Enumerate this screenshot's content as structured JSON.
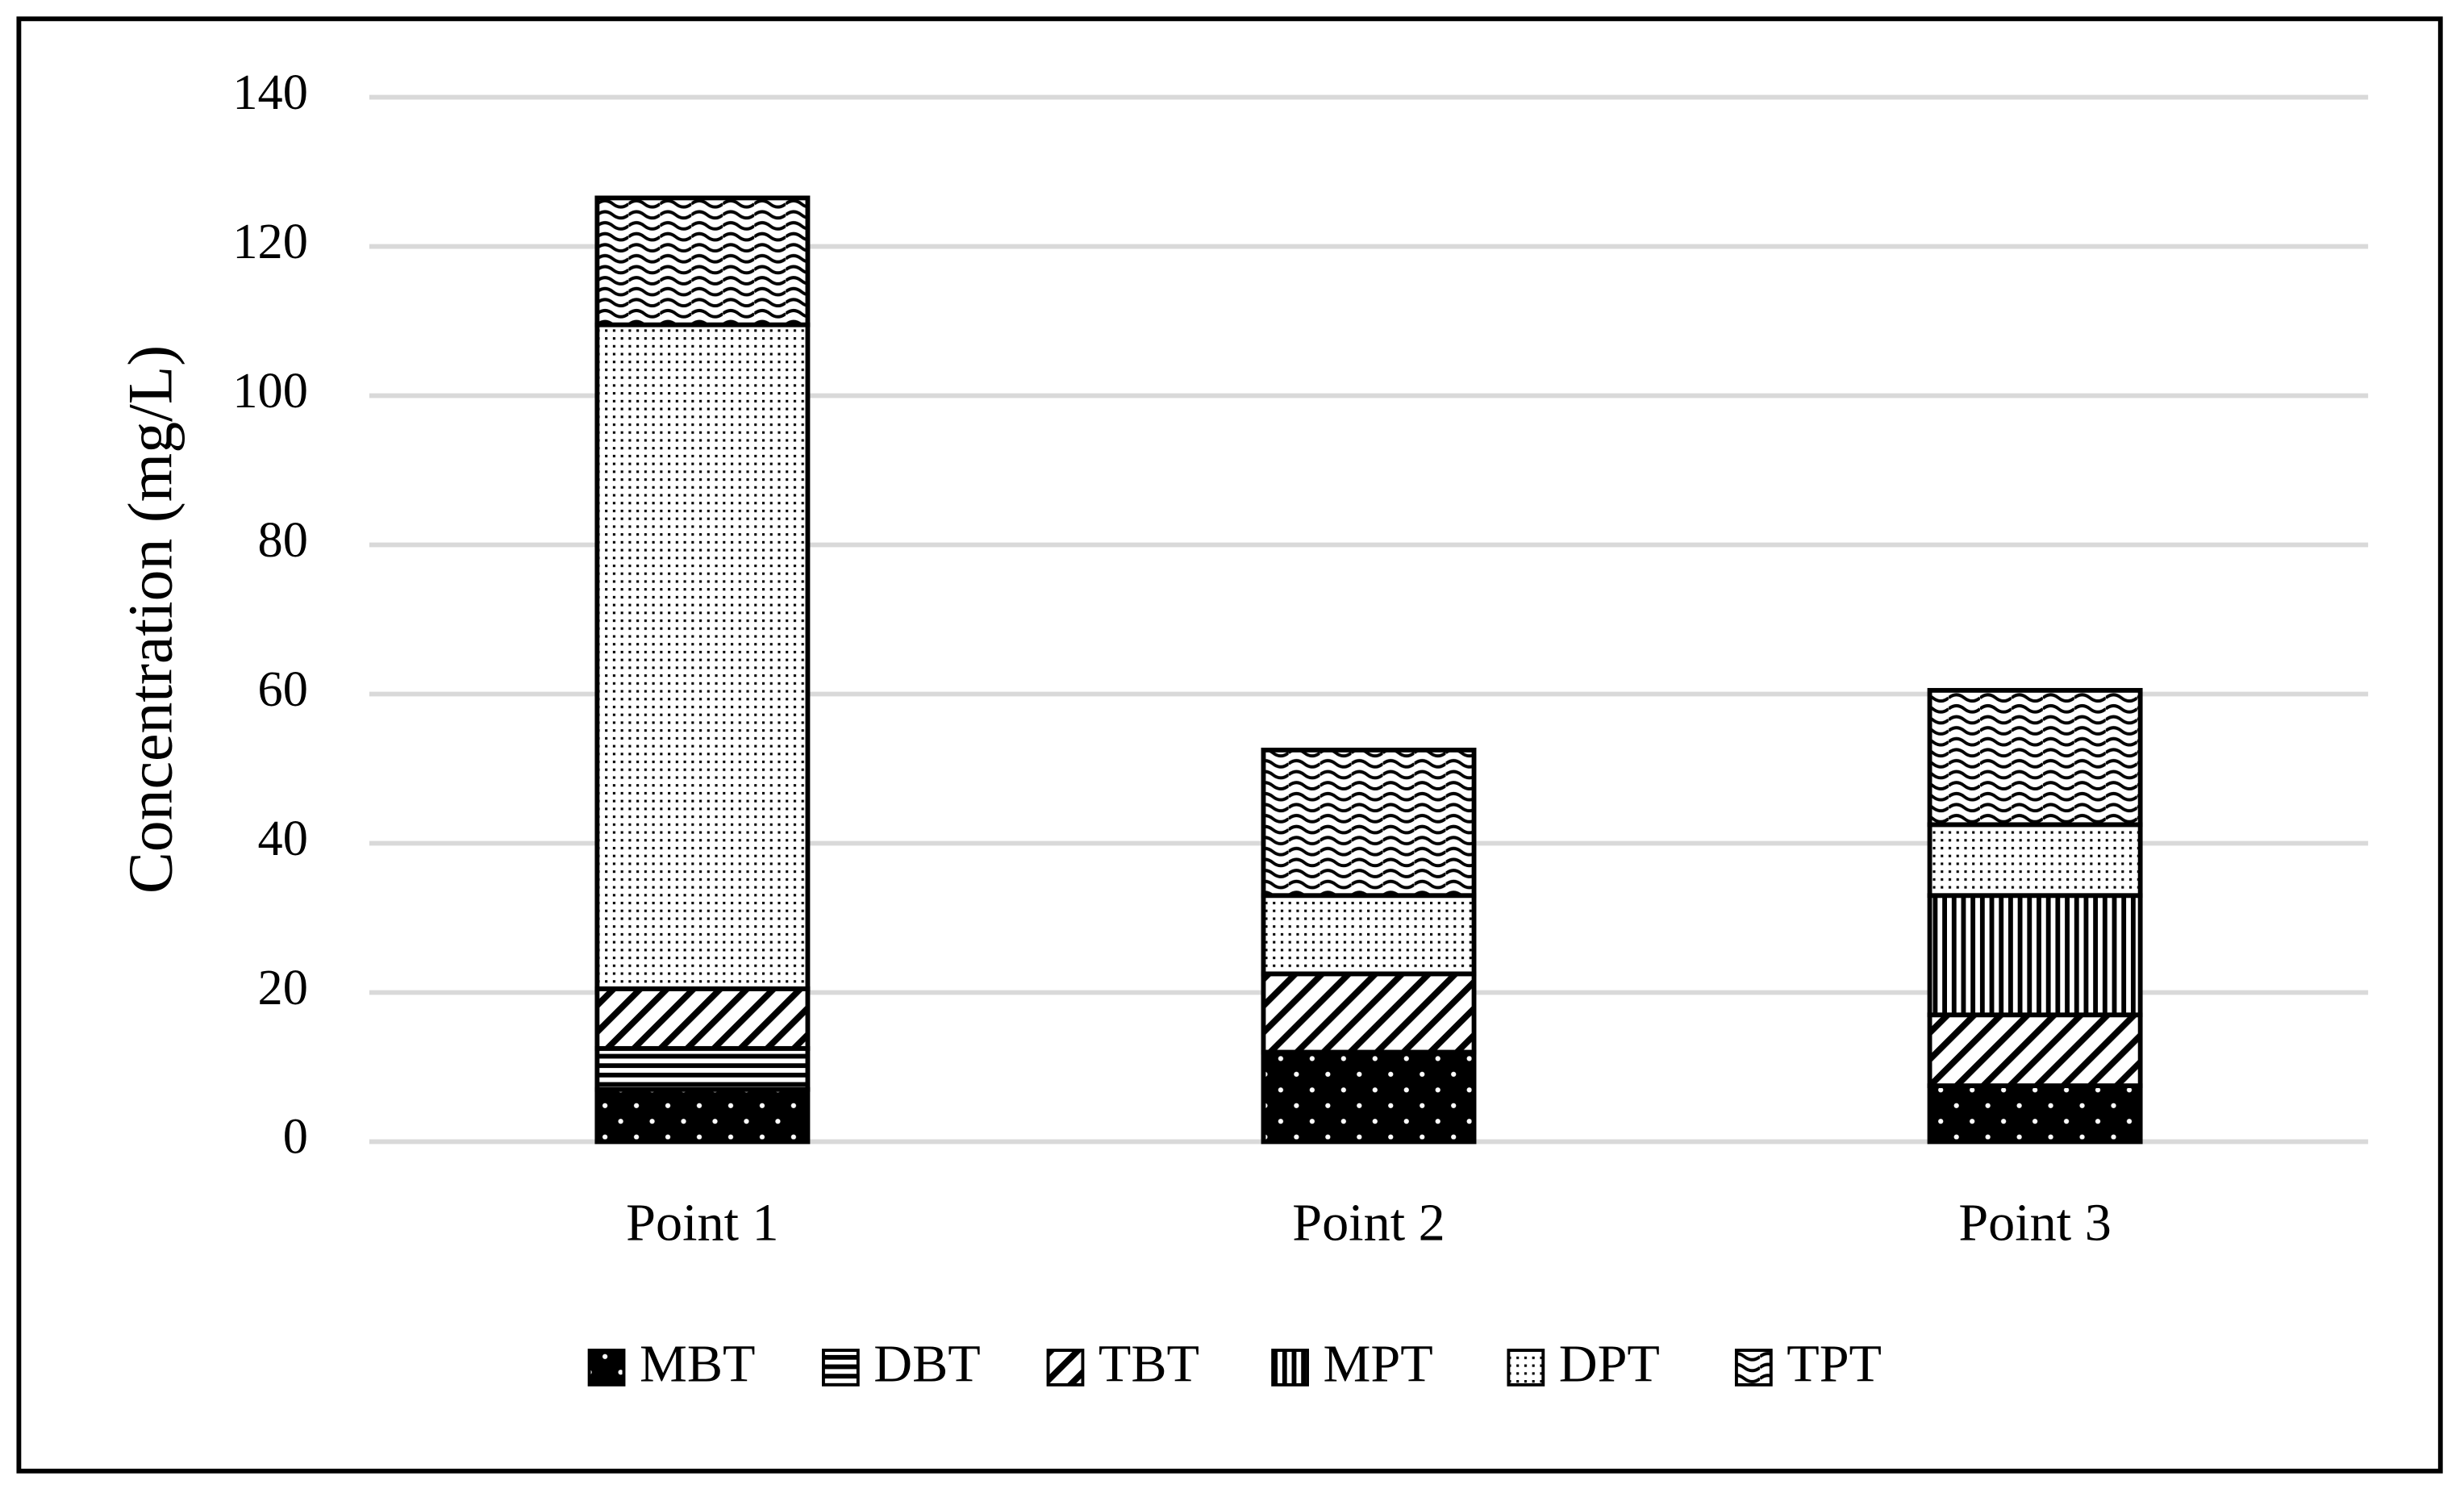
{
  "chart_data": {
    "type": "stacked-bar",
    "y_label": "Concentration (mg/L)",
    "categories": [
      "Point 1",
      "Point 2",
      "Point 3"
    ],
    "series": [
      {
        "name": "MBT",
        "color": "#000000",
        "pattern": "dots-on-black",
        "values": [
          7,
          12,
          7.5
        ]
      },
      {
        "name": "DBT",
        "color": "#000000",
        "pattern": "horizontal",
        "values": [
          5.5,
          0,
          0
        ]
      },
      {
        "name": "TBT",
        "color": "#000000",
        "pattern": "diagonal",
        "values": [
          8,
          10.5,
          9.5
        ]
      },
      {
        "name": "MPT",
        "color": "#000000",
        "pattern": "vertical",
        "values": [
          0,
          0,
          16
        ]
      },
      {
        "name": "DPT",
        "color": "#000000",
        "pattern": "fine-dots",
        "values": [
          89,
          10.5,
          9.5
        ]
      },
      {
        "name": "TPT",
        "color": "#000000",
        "pattern": "waves",
        "values": [
          17,
          19.5,
          18
        ]
      }
    ],
    "ylim": [
      0,
      140
    ],
    "yticks": [
      0,
      20,
      40,
      60,
      80,
      100,
      120,
      140
    ],
    "grid": true,
    "legend": "bottom"
  }
}
